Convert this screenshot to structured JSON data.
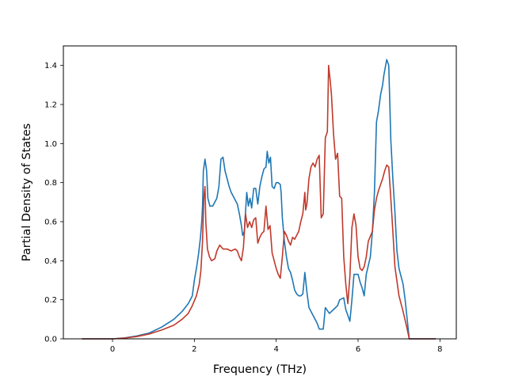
{
  "chart_data": {
    "type": "line",
    "title": "",
    "xlabel": "Frequency (THz)",
    "ylabel": "Partial Density of States",
    "xlim": [
      -1.2,
      8.4
    ],
    "ylim": [
      0.0,
      1.5
    ],
    "xticks": [
      0,
      2,
      4,
      6,
      8
    ],
    "yticks": [
      0.0,
      0.2,
      0.4,
      0.6,
      0.8,
      1.0,
      1.2,
      1.4
    ],
    "xtick_labels": [
      "0",
      "2",
      "4",
      "6",
      "8"
    ],
    "ytick_labels": [
      "0.0",
      "0.2",
      "0.4",
      "0.6",
      "0.8",
      "1.0",
      "1.2",
      "1.4"
    ],
    "grid": false,
    "legend": "none",
    "series": [
      {
        "color": "#1f77b4",
        "points": [
          [
            -0.75,
            0.0
          ],
          [
            0.0,
            0.0
          ],
          [
            0.3,
            0.005
          ],
          [
            0.6,
            0.015
          ],
          [
            0.9,
            0.03
          ],
          [
            1.2,
            0.06
          ],
          [
            1.5,
            0.1
          ],
          [
            1.7,
            0.14
          ],
          [
            1.85,
            0.18
          ],
          [
            1.95,
            0.22
          ],
          [
            2.0,
            0.3
          ],
          [
            2.05,
            0.36
          ],
          [
            2.1,
            0.43
          ],
          [
            2.15,
            0.52
          ],
          [
            2.18,
            0.6
          ],
          [
            2.2,
            0.68
          ],
          [
            2.22,
            0.86
          ],
          [
            2.26,
            0.92
          ],
          [
            2.3,
            0.86
          ],
          [
            2.33,
            0.72
          ],
          [
            2.38,
            0.68
          ],
          [
            2.45,
            0.68
          ],
          [
            2.55,
            0.72
          ],
          [
            2.6,
            0.78
          ],
          [
            2.65,
            0.92
          ],
          [
            2.7,
            0.93
          ],
          [
            2.75,
            0.86
          ],
          [
            2.8,
            0.82
          ],
          [
            2.85,
            0.78
          ],
          [
            2.9,
            0.75
          ],
          [
            2.95,
            0.73
          ],
          [
            3.0,
            0.71
          ],
          [
            3.05,
            0.69
          ],
          [
            3.1,
            0.64
          ],
          [
            3.15,
            0.58
          ],
          [
            3.18,
            0.53
          ],
          [
            3.22,
            0.55
          ],
          [
            3.28,
            0.75
          ],
          [
            3.32,
            0.68
          ],
          [
            3.36,
            0.72
          ],
          [
            3.4,
            0.67
          ],
          [
            3.45,
            0.77
          ],
          [
            3.5,
            0.77
          ],
          [
            3.55,
            0.69
          ],
          [
            3.6,
            0.78
          ],
          [
            3.65,
            0.83
          ],
          [
            3.7,
            0.87
          ],
          [
            3.75,
            0.88
          ],
          [
            3.78,
            0.96
          ],
          [
            3.82,
            0.9
          ],
          [
            3.86,
            0.93
          ],
          [
            3.9,
            0.78
          ],
          [
            3.95,
            0.77
          ],
          [
            4.0,
            0.8
          ],
          [
            4.05,
            0.8
          ],
          [
            4.1,
            0.79
          ],
          [
            4.12,
            0.75
          ],
          [
            4.15,
            0.62
          ],
          [
            4.2,
            0.5
          ],
          [
            4.25,
            0.42
          ],
          [
            4.3,
            0.36
          ],
          [
            4.35,
            0.34
          ],
          [
            4.4,
            0.3
          ],
          [
            4.45,
            0.25
          ],
          [
            4.5,
            0.23
          ],
          [
            4.55,
            0.22
          ],
          [
            4.6,
            0.22
          ],
          [
            4.65,
            0.23
          ],
          [
            4.7,
            0.34
          ],
          [
            4.75,
            0.24
          ],
          [
            4.8,
            0.16
          ],
          [
            4.9,
            0.12
          ],
          [
            5.0,
            0.08
          ],
          [
            5.05,
            0.05
          ],
          [
            5.15,
            0.05
          ],
          [
            5.2,
            0.16
          ],
          [
            5.3,
            0.13
          ],
          [
            5.4,
            0.15
          ],
          [
            5.5,
            0.17
          ],
          [
            5.55,
            0.2
          ],
          [
            5.65,
            0.21
          ],
          [
            5.7,
            0.15
          ],
          [
            5.75,
            0.12
          ],
          [
            5.8,
            0.09
          ],
          [
            5.85,
            0.2
          ],
          [
            5.9,
            0.33
          ],
          [
            6.0,
            0.33
          ],
          [
            6.05,
            0.29
          ],
          [
            6.1,
            0.26
          ],
          [
            6.15,
            0.22
          ],
          [
            6.2,
            0.33
          ],
          [
            6.3,
            0.42
          ],
          [
            6.35,
            0.55
          ],
          [
            6.4,
            0.75
          ],
          [
            6.45,
            1.11
          ],
          [
            6.5,
            1.17
          ],
          [
            6.55,
            1.25
          ],
          [
            6.6,
            1.3
          ],
          [
            6.63,
            1.35
          ],
          [
            6.7,
            1.43
          ],
          [
            6.75,
            1.4
          ],
          [
            6.8,
            1.02
          ],
          [
            6.85,
            0.82
          ],
          [
            6.9,
            0.65
          ],
          [
            6.95,
            0.45
          ],
          [
            7.0,
            0.36
          ],
          [
            7.1,
            0.28
          ],
          [
            7.15,
            0.2
          ],
          [
            7.2,
            0.1
          ],
          [
            7.25,
            0.0
          ],
          [
            7.9,
            0.0
          ]
        ]
      },
      {
        "color": "#c0392b",
        "points": [
          [
            -0.75,
            0.0
          ],
          [
            0.0,
            0.0
          ],
          [
            0.3,
            0.004
          ],
          [
            0.6,
            0.012
          ],
          [
            0.9,
            0.025
          ],
          [
            1.2,
            0.045
          ],
          [
            1.5,
            0.07
          ],
          [
            1.7,
            0.1
          ],
          [
            1.85,
            0.13
          ],
          [
            1.95,
            0.17
          ],
          [
            2.05,
            0.22
          ],
          [
            2.12,
            0.28
          ],
          [
            2.16,
            0.35
          ],
          [
            2.2,
            0.5
          ],
          [
            2.23,
            0.72
          ],
          [
            2.26,
            0.78
          ],
          [
            2.28,
            0.6
          ],
          [
            2.32,
            0.46
          ],
          [
            2.37,
            0.42
          ],
          [
            2.42,
            0.4
          ],
          [
            2.5,
            0.41
          ],
          [
            2.55,
            0.45
          ],
          [
            2.62,
            0.48
          ],
          [
            2.7,
            0.46
          ],
          [
            2.8,
            0.46
          ],
          [
            2.9,
            0.45
          ],
          [
            3.0,
            0.46
          ],
          [
            3.05,
            0.45
          ],
          [
            3.1,
            0.42
          ],
          [
            3.15,
            0.4
          ],
          [
            3.2,
            0.47
          ],
          [
            3.25,
            0.64
          ],
          [
            3.3,
            0.57
          ],
          [
            3.35,
            0.6
          ],
          [
            3.4,
            0.57
          ],
          [
            3.45,
            0.61
          ],
          [
            3.5,
            0.62
          ],
          [
            3.55,
            0.49
          ],
          [
            3.6,
            0.52
          ],
          [
            3.65,
            0.54
          ],
          [
            3.7,
            0.55
          ],
          [
            3.75,
            0.68
          ],
          [
            3.8,
            0.56
          ],
          [
            3.85,
            0.58
          ],
          [
            3.9,
            0.44
          ],
          [
            4.0,
            0.36
          ],
          [
            4.05,
            0.33
          ],
          [
            4.1,
            0.31
          ],
          [
            4.15,
            0.42
          ],
          [
            4.2,
            0.55
          ],
          [
            4.25,
            0.53
          ],
          [
            4.3,
            0.5
          ],
          [
            4.35,
            0.48
          ],
          [
            4.4,
            0.52
          ],
          [
            4.45,
            0.51
          ],
          [
            4.5,
            0.53
          ],
          [
            4.55,
            0.55
          ],
          [
            4.6,
            0.6
          ],
          [
            4.65,
            0.64
          ],
          [
            4.7,
            0.75
          ],
          [
            4.72,
            0.66
          ],
          [
            4.75,
            0.69
          ],
          [
            4.8,
            0.82
          ],
          [
            4.85,
            0.88
          ],
          [
            4.9,
            0.9
          ],
          [
            4.95,
            0.88
          ],
          [
            5.0,
            0.92
          ],
          [
            5.05,
            0.94
          ],
          [
            5.1,
            0.62
          ],
          [
            5.15,
            0.64
          ],
          [
            5.2,
            1.03
          ],
          [
            5.25,
            1.06
          ],
          [
            5.28,
            1.4
          ],
          [
            5.32,
            1.32
          ],
          [
            5.35,
            1.25
          ],
          [
            5.4,
            1.05
          ],
          [
            5.45,
            0.92
          ],
          [
            5.5,
            0.95
          ],
          [
            5.55,
            0.73
          ],
          [
            5.6,
            0.72
          ],
          [
            5.65,
            0.42
          ],
          [
            5.7,
            0.28
          ],
          [
            5.75,
            0.18
          ],
          [
            5.8,
            0.32
          ],
          [
            5.85,
            0.57
          ],
          [
            5.9,
            0.64
          ],
          [
            5.95,
            0.58
          ],
          [
            6.0,
            0.42
          ],
          [
            6.05,
            0.36
          ],
          [
            6.1,
            0.35
          ],
          [
            6.15,
            0.37
          ],
          [
            6.2,
            0.42
          ],
          [
            6.25,
            0.5
          ],
          [
            6.35,
            0.55
          ],
          [
            6.4,
            0.66
          ],
          [
            6.45,
            0.72
          ],
          [
            6.5,
            0.76
          ],
          [
            6.55,
            0.79
          ],
          [
            6.6,
            0.82
          ],
          [
            6.65,
            0.86
          ],
          [
            6.7,
            0.89
          ],
          [
            6.75,
            0.88
          ],
          [
            6.8,
            0.72
          ],
          [
            6.85,
            0.55
          ],
          [
            6.9,
            0.37
          ],
          [
            7.0,
            0.22
          ],
          [
            7.1,
            0.14
          ],
          [
            7.2,
            0.05
          ],
          [
            7.25,
            0.0
          ],
          [
            7.9,
            0.0
          ]
        ]
      }
    ]
  }
}
